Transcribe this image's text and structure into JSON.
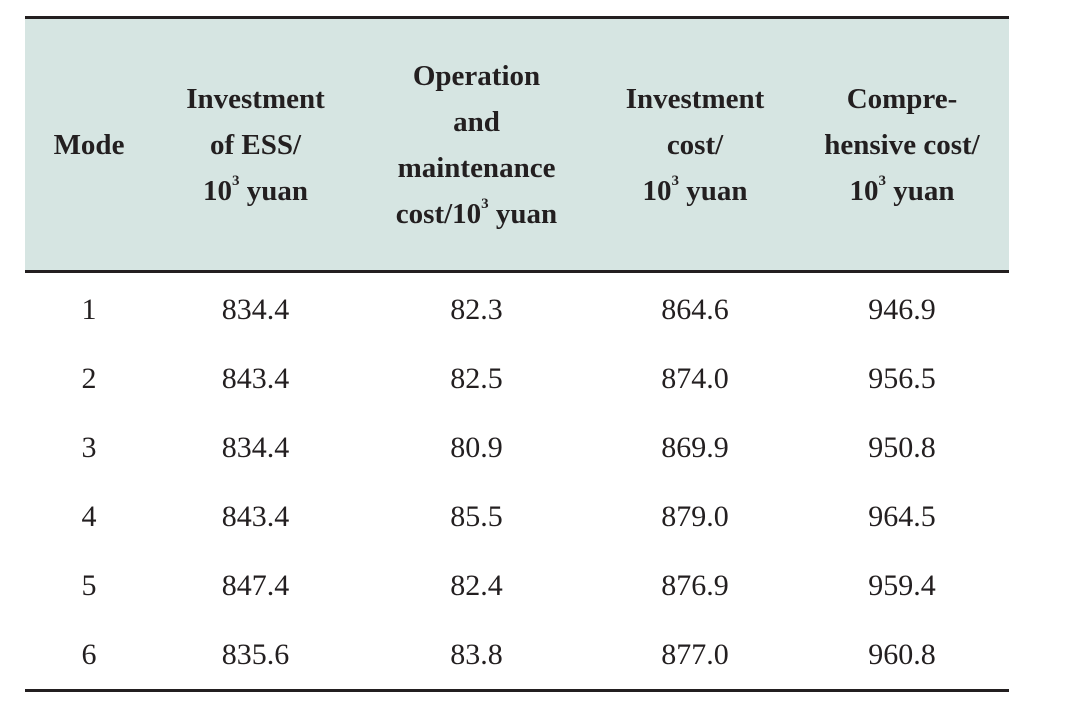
{
  "table": {
    "headers": [
      {
        "lines": [
          "Mode"
        ]
      },
      {
        "lines": [
          "Investment",
          "of ESS/",
          "10|3| yuan"
        ]
      },
      {
        "lines": [
          "Operation",
          "and",
          "maintenance",
          "cost/10|3| yuan"
        ]
      },
      {
        "lines": [
          "Investment",
          "cost/",
          "10|3| yuan"
        ]
      },
      {
        "lines": [
          "Compre-",
          "hensive cost/",
          "10|3| yuan"
        ]
      }
    ],
    "rows": [
      [
        "1",
        "834.4",
        "82.3",
        "864.6",
        "946.9"
      ],
      [
        "2",
        "843.4",
        "82.5",
        "874.0",
        "956.5"
      ],
      [
        "3",
        "834.4",
        "80.9",
        "869.9",
        "950.8"
      ],
      [
        "4",
        "843.4",
        "85.5",
        "879.0",
        "964.5"
      ],
      [
        "5",
        "847.4",
        "82.4",
        "876.9",
        "959.4"
      ],
      [
        "6",
        "835.6",
        "83.8",
        "877.0",
        "960.8"
      ]
    ]
  }
}
